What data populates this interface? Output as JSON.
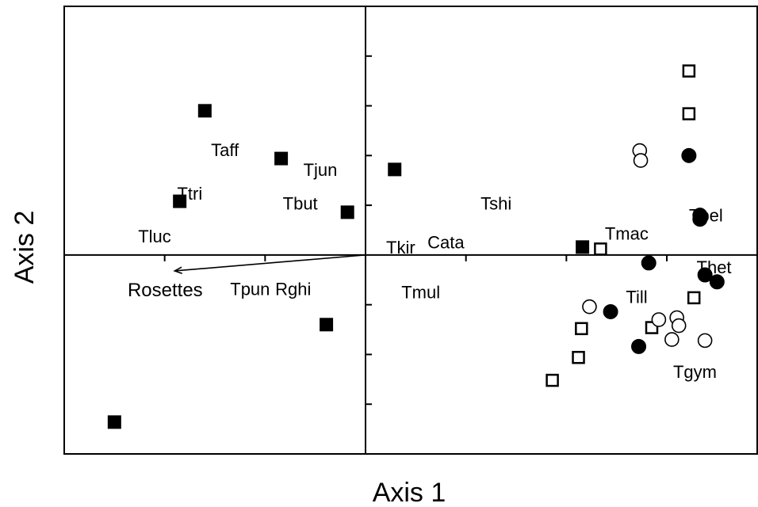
{
  "chart_data": {
    "type": "scatter",
    "title": "",
    "xlabel": "Axis 1",
    "ylabel": "Axis 2",
    "xlim": [
      -3.0,
      3.9
    ],
    "ylim": [
      -2.0,
      2.5
    ],
    "grid": false,
    "x_ticks": [
      -2,
      -1,
      0,
      1,
      2,
      3
    ],
    "y_ticks": [
      -1.5,
      -1,
      -0.5,
      0,
      0.5,
      1,
      1.5,
      2
    ],
    "series": [
      {
        "marker": "filled-square",
        "points": [
          {
            "x": -1.6,
            "y": 1.45
          },
          {
            "x": -0.84,
            "y": 0.97
          },
          {
            "x": -1.85,
            "y": 0.54
          },
          {
            "x": -0.18,
            "y": 0.43
          },
          {
            "x": 0.29,
            "y": 0.86
          },
          {
            "x": -0.39,
            "y": -0.7
          },
          {
            "x": -2.5,
            "y": -1.68
          },
          {
            "x": 2.16,
            "y": 0.08
          }
        ]
      },
      {
        "marker": "open-square",
        "points": [
          {
            "x": 3.22,
            "y": 1.85
          },
          {
            "x": 3.22,
            "y": 1.42
          },
          {
            "x": 2.34,
            "y": 0.06
          },
          {
            "x": 3.27,
            "y": -0.43
          },
          {
            "x": 2.15,
            "y": -0.74
          },
          {
            "x": 2.12,
            "y": -1.03
          },
          {
            "x": 2.85,
            "y": -0.73
          },
          {
            "x": 1.86,
            "y": -1.26
          }
        ]
      },
      {
        "marker": "filled-circle",
        "points": [
          {
            "x": 3.22,
            "y": 1.0
          },
          {
            "x": 3.33,
            "y": 0.4
          },
          {
            "x": 3.33,
            "y": 0.36
          },
          {
            "x": 2.82,
            "y": -0.08
          },
          {
            "x": 3.38,
            "y": -0.2
          },
          {
            "x": 3.5,
            "y": -0.27
          },
          {
            "x": 2.44,
            "y": -0.57
          },
          {
            "x": 2.72,
            "y": -0.92
          }
        ]
      },
      {
        "marker": "open-circle",
        "points": [
          {
            "x": 2.73,
            "y": 1.05
          },
          {
            "x": 2.74,
            "y": 0.95
          },
          {
            "x": 2.23,
            "y": -0.52
          },
          {
            "x": 2.92,
            "y": -0.65
          },
          {
            "x": 3.1,
            "y": -0.63
          },
          {
            "x": 3.12,
            "y": -0.71
          },
          {
            "x": 3.05,
            "y": -0.85
          },
          {
            "x": 3.38,
            "y": -0.86
          }
        ]
      }
    ],
    "labels": [
      {
        "text": "Taff",
        "x": -1.4,
        "y": 1.06
      },
      {
        "text": "Ttri",
        "x": -1.75,
        "y": 0.62
      },
      {
        "text": "Tluc",
        "x": -2.1,
        "y": 0.19
      },
      {
        "text": "Tbut",
        "x": -0.65,
        "y": 0.52
      },
      {
        "text": "Tjun",
        "x": -0.45,
        "y": 0.86
      },
      {
        "text": "Tshi",
        "x": 1.3,
        "y": 0.52
      },
      {
        "text": "Tkir",
        "x": 0.35,
        "y": 0.08
      },
      {
        "text": "Cata",
        "x": 0.8,
        "y": 0.13
      },
      {
        "text": "Tmul",
        "x": 0.55,
        "y": -0.37
      },
      {
        "text": "Tpun",
        "x": -1.15,
        "y": -0.34
      },
      {
        "text": "Rghi",
        "x": -0.72,
        "y": -0.34
      },
      {
        "text": "Tmac",
        "x": 2.6,
        "y": 0.22
      },
      {
        "text": "Tbel",
        "x": 3.39,
        "y": 0.4
      },
      {
        "text": "Thet",
        "x": 3.47,
        "y": -0.12
      },
      {
        "text": "Till",
        "x": 2.7,
        "y": -0.42
      },
      {
        "text": "Tgym",
        "x": 3.28,
        "y": -1.17
      }
    ],
    "vector": {
      "label": "Rosettes",
      "x": -1.9,
      "y": -0.16
    }
  }
}
